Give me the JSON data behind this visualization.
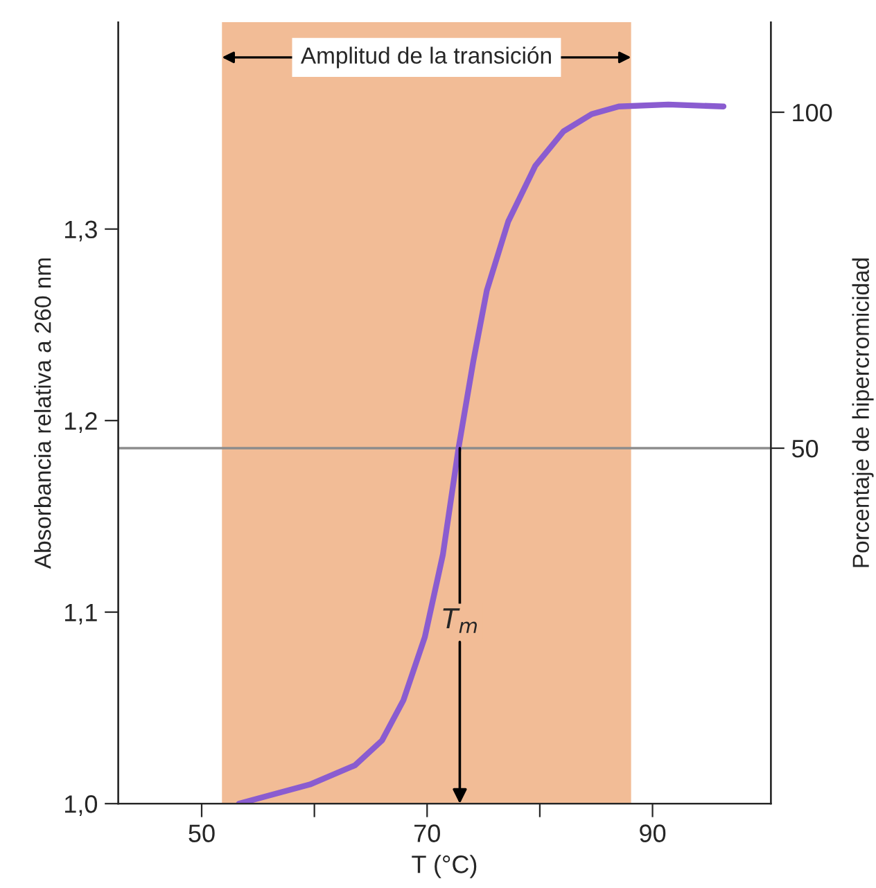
{
  "chart_data": {
    "type": "line",
    "xlabel": "T (°C)",
    "ylabel": "Absorbancia relativa a 260 nm",
    "y2label": "Porcentaje de hipercromicidad",
    "x": [
      53.3,
      59.6,
      63.6,
      66.0,
      67.9,
      69.8,
      71.4,
      72.8,
      74.1,
      75.3,
      77.2,
      79.6,
      82.1,
      84.6,
      87.0,
      91.4,
      96.3
    ],
    "series": [
      {
        "color": "#8a5cd0",
        "values": [
          1.0,
          1.01,
          1.02,
          1.033,
          1.054,
          1.087,
          1.13,
          1.186,
          1.231,
          1.268,
          1.304,
          1.333,
          1.351,
          1.36,
          1.364,
          1.365,
          1.364
        ]
      }
    ],
    "xlim": [
      42.6,
      100.5
    ],
    "xticks": [
      50,
      {
        "value": 60,
        "label": null
      },
      70,
      {
        "value": 80,
        "label": null
      },
      90
    ],
    "ylim": [
      1.0,
      1.408
    ],
    "yticks": [
      {
        "value": 1.0,
        "label": "1,0"
      },
      {
        "value": 1.1,
        "label": "1,1"
      },
      {
        "value": 1.2,
        "label": "1,2"
      },
      {
        "value": 1.3,
        "label": "1,3"
      }
    ],
    "y2lim": [
      -2.9,
      113.4
    ],
    "y2ticks": [
      50,
      100
    ],
    "bands": [
      {
        "axis": "x",
        "from": 51.8,
        "to": 88.1,
        "label": "Amplitud de la transición",
        "color": "#f2bc96"
      }
    ],
    "ref_lines": [
      {
        "axis": "y2",
        "value": 50,
        "color": "#8c8c8c"
      }
    ],
    "annotations": [
      {
        "text": "T$_{m}$",
        "x": 72.9,
        "y": 1.0
      }
    ],
    "grid": false,
    "legend": false
  }
}
